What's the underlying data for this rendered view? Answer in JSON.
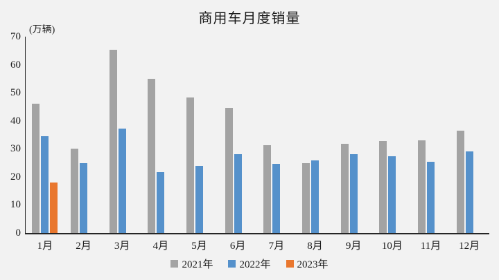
{
  "colors": {
    "background": "#f2f2f2",
    "axis": "#262626",
    "text": "#1a1a1a",
    "series_2021": "#a3a3a3",
    "series_2022": "#5591cb",
    "series_2023": "#e9772e"
  },
  "chart_data": {
    "type": "bar",
    "title": "商用车月度销量",
    "ylabel": "(万辆)",
    "xlabel": "",
    "categories": [
      "1月",
      "2月",
      "3月",
      "4月",
      "5月",
      "6月",
      "7月",
      "8月",
      "9月",
      "10月",
      "11月",
      "12月"
    ],
    "series": [
      {
        "name": "2021年",
        "color": "#a3a3a3",
        "values": [
          46,
          30,
          65.4,
          55,
          48.2,
          44.6,
          31.2,
          24.8,
          31.7,
          32.7,
          33,
          36.4
        ]
      },
      {
        "name": "2022年",
        "color": "#5591cb",
        "values": [
          34.5,
          25,
          37.2,
          21.7,
          24,
          28.2,
          24.6,
          25.9,
          28,
          27.4,
          25.4,
          29.2
        ]
      },
      {
        "name": "2023年",
        "color": "#e9772e",
        "values": [
          18.1,
          null,
          null,
          null,
          null,
          null,
          null,
          null,
          null,
          null,
          null,
          null
        ]
      }
    ],
    "ylim": [
      0,
      70
    ],
    "yticks": [
      0,
      10,
      20,
      30,
      40,
      50,
      60,
      70
    ],
    "grid": false,
    "legend_position": "bottom"
  }
}
